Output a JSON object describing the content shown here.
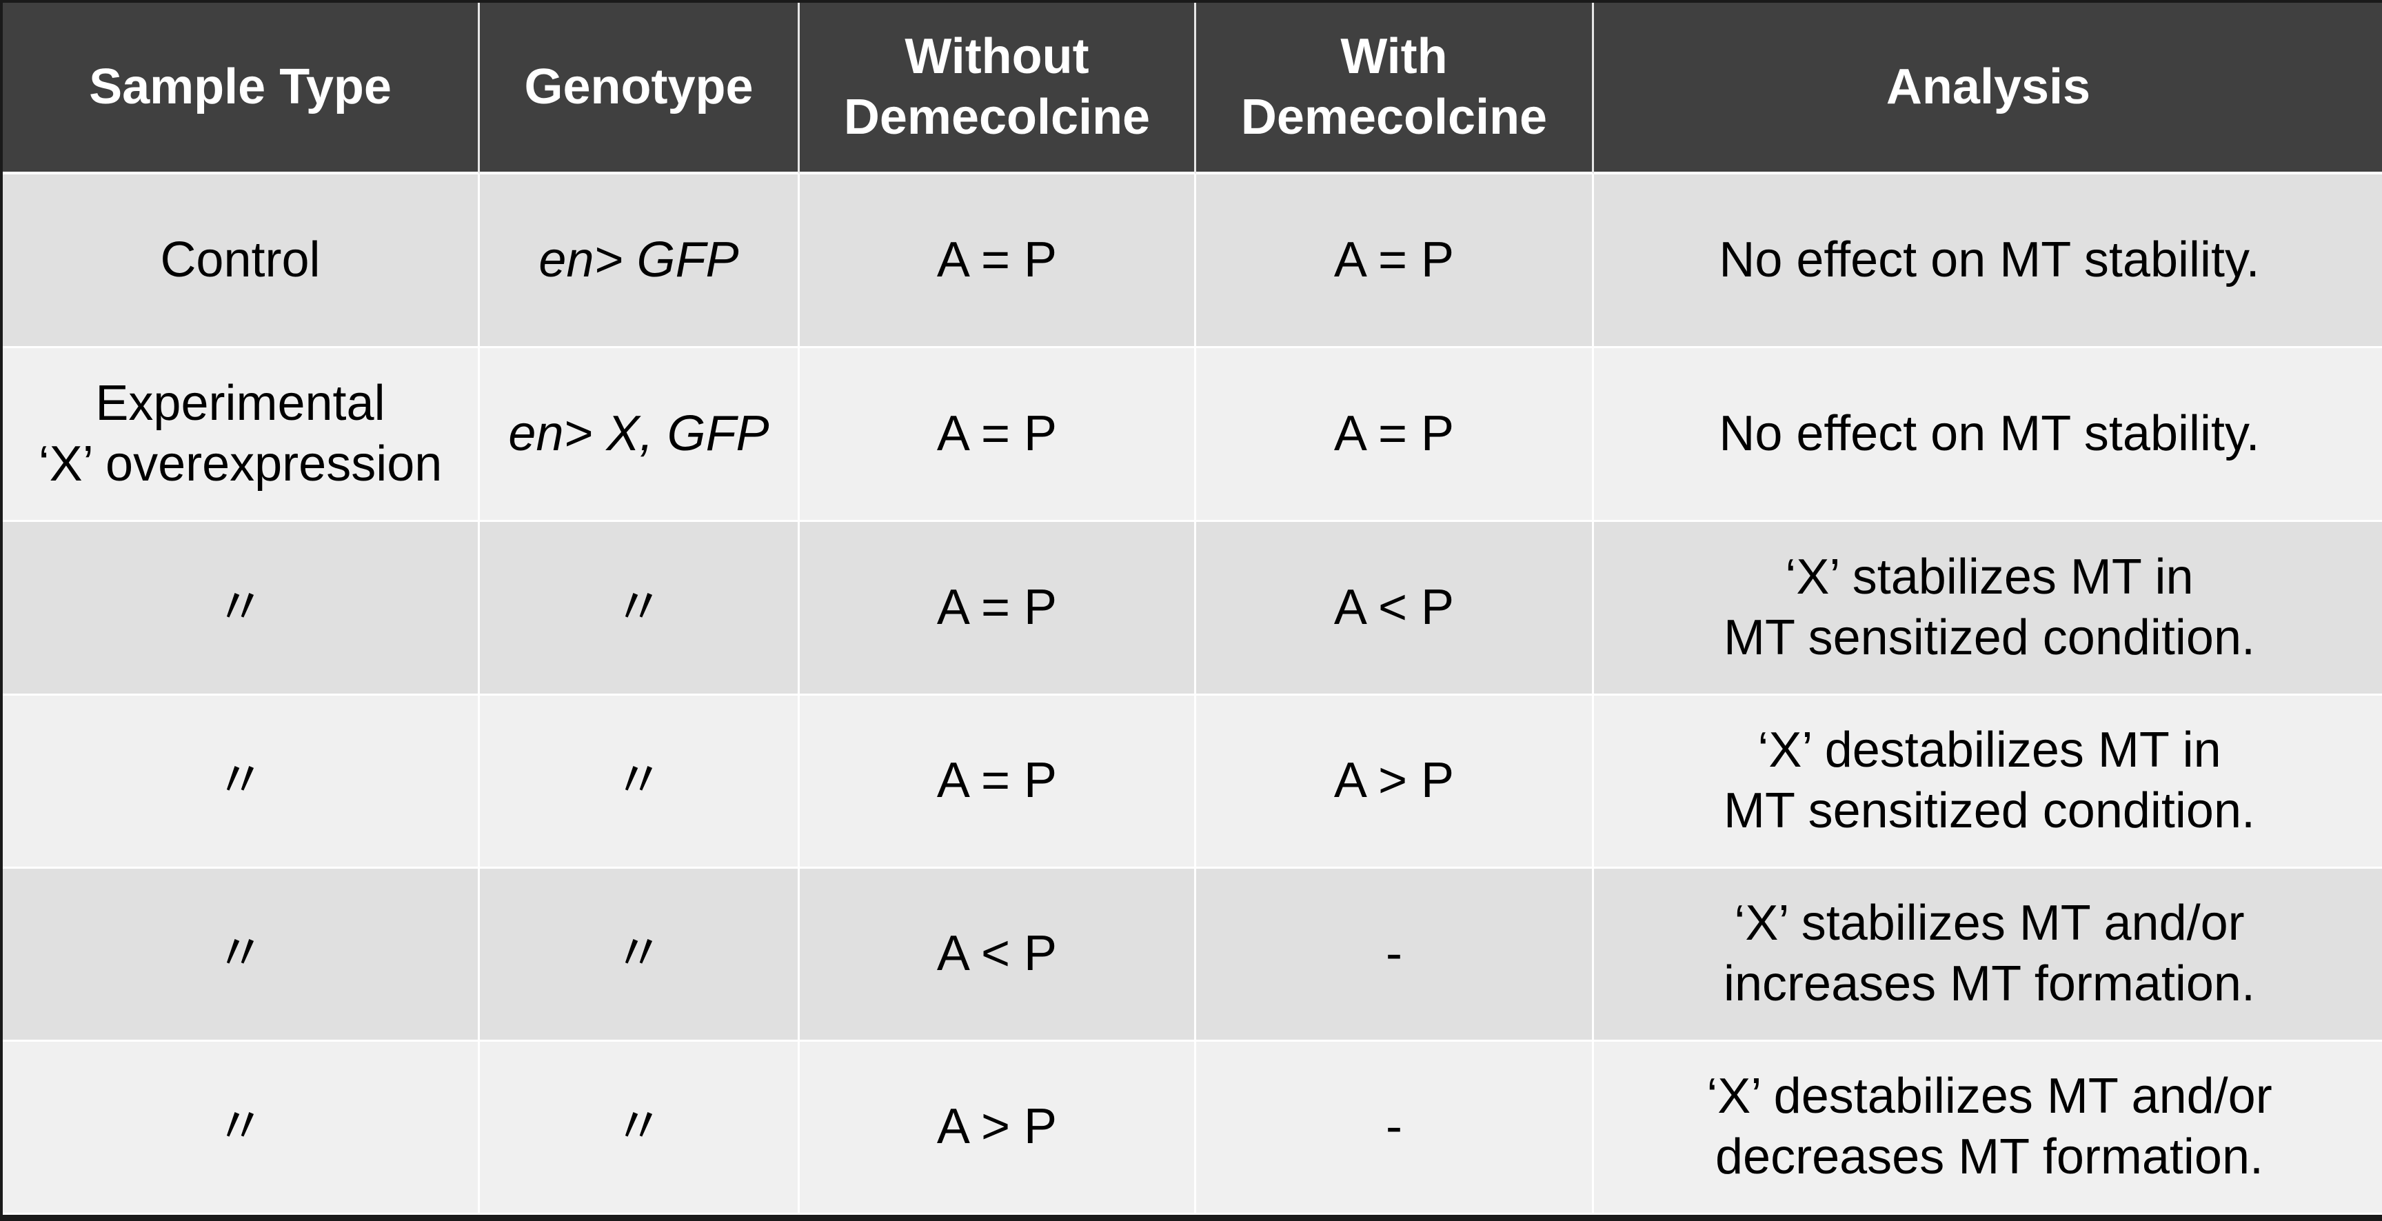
{
  "table": {
    "headers": [
      "Sample Type",
      "Genotype",
      "Without\nDemecolcine",
      "With\nDemecolcine",
      "Analysis"
    ],
    "rows": [
      {
        "sample_type": "Control",
        "genotype": "en> GFP",
        "without": "A = P",
        "with": "A = P",
        "analysis": "No effect on MT stability."
      },
      {
        "sample_type": "Experimental\n‘X’ overexpression",
        "genotype": "en> X, GFP",
        "without": "A = P",
        "with": "A = P",
        "analysis": "No effect on MT stability."
      },
      {
        "sample_type": "〃",
        "genotype": "〃",
        "without": "A = P",
        "with": "A < P",
        "analysis": "‘X’ stabilizes MT in\nMT sensitized condition."
      },
      {
        "sample_type": "〃",
        "genotype": "〃",
        "without": "A = P",
        "with": "A > P",
        "analysis": "‘X’ destabilizes MT in\nMT sensitized condition."
      },
      {
        "sample_type": "〃",
        "genotype": "〃",
        "without": "A < P",
        "with": "-",
        "analysis": "‘X’ stabilizes MT and/or\nincreases MT formation."
      },
      {
        "sample_type": "〃",
        "genotype": "〃",
        "without": "A > P",
        "with": "-",
        "analysis": "‘X’ destabilizes MT and/or\ndecreases MT formation."
      }
    ]
  },
  "colors": {
    "header_bg": "#404040",
    "header_text": "#ffffff",
    "row_odd_bg": "#e0e0e0",
    "row_even_bg": "#f0f0f0"
  }
}
